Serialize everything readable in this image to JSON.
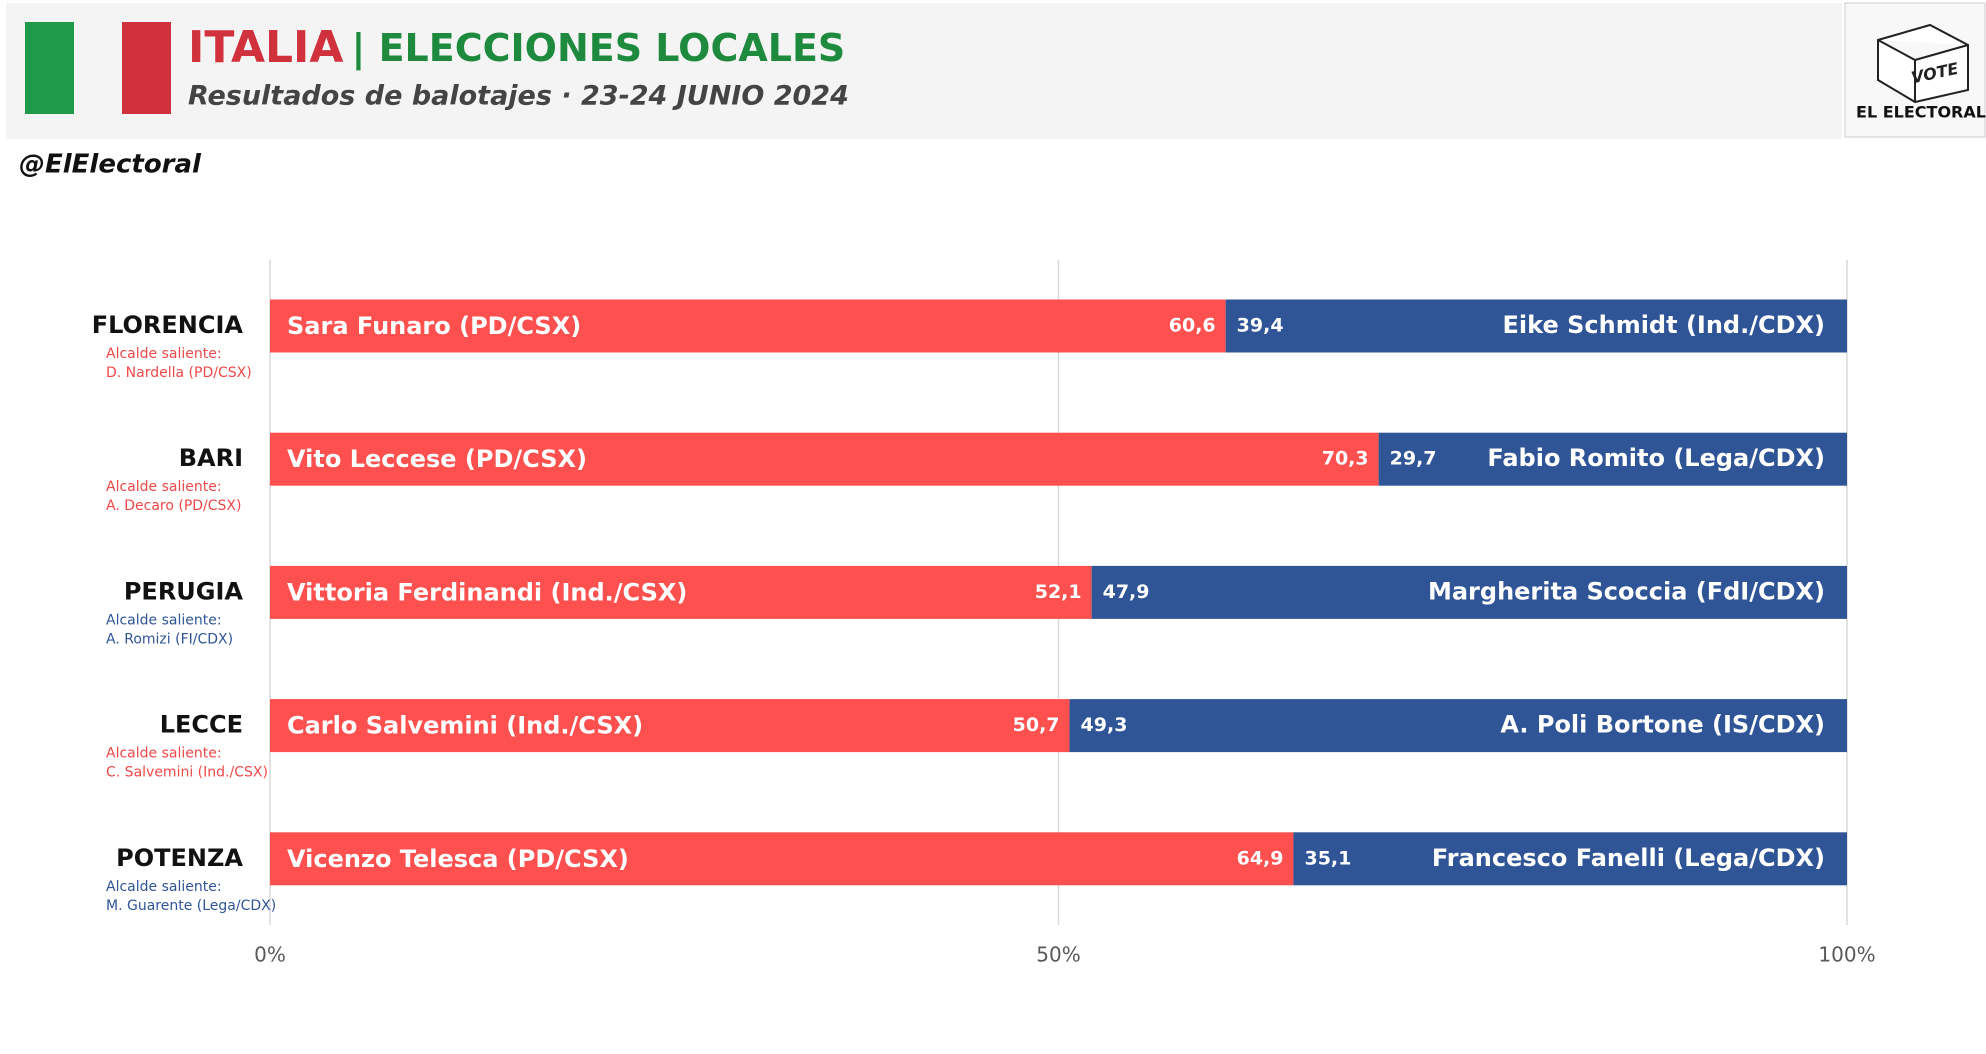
{
  "chart_data": {
    "type": "bar",
    "title": "ITALIA",
    "title_suffix": "| ELECCIONES LOCALES",
    "subtitle": "Resultados de balotajes · 23-24 JUNIO 2024",
    "handle": "@ElElectoral",
    "logo": [
      "VOTE",
      "EL ELECTORAL"
    ],
    "categories": [
      "FLORENCIA",
      "BARI",
      "PERUGIA",
      "LECCE",
      "POTENZA"
    ],
    "notes": [
      {
        "label": "Alcalde saliente:",
        "name": "D. Nardella (PD/CSX)",
        "color": "#f04848"
      },
      {
        "label": "Alcalde saliente:",
        "name": "A. Decaro (PD/CSX)",
        "color": "#f04848"
      },
      {
        "label": "Alcalde saliente:",
        "name": "A. Romizi (FI/CDX)",
        "color": "#2f5597"
      },
      {
        "label": "Alcalde saliente:",
        "name": "C. Salvemini (Ind./CSX)",
        "color": "#f04848"
      },
      {
        "label": "Alcalde saliente:",
        "name": "M. Guarente (Lega/CDX)",
        "color": "#2f5597"
      }
    ],
    "series": [
      {
        "color": "#ff5050",
        "values": [
          60.6,
          70.3,
          52.1,
          50.7,
          64.9
        ],
        "value_labels": [
          "60,6",
          "70,3",
          "52,1",
          "50,7",
          "64,9"
        ],
        "labels": [
          "Sara Funaro (PD/CSX)",
          "Vito Leccese (PD/CSX)",
          "Vittoria Ferdinandi (Ind./CSX)",
          "Carlo Salvemini (Ind./CSX)",
          "Vicenzo Telesca (PD/CSX)"
        ]
      },
      {
        "color": "#2f5597",
        "values": [
          39.4,
          29.7,
          47.9,
          49.3,
          35.1
        ],
        "value_labels": [
          "39,4",
          "29,7",
          "47,9",
          "49,3",
          "35,1"
        ],
        "labels": [
          "Eike Schmidt (Ind./CDX)",
          "Fabio Romito (Lega/CDX)",
          "Margherita Scoccia (FdI/CDX)",
          "A. Poli Bortone (IS/CDX)",
          "Francesco Fanelli (Lega/CDX)"
        ]
      }
    ],
    "xlim": [
      0,
      100
    ],
    "xticks": [
      {
        "value": 0,
        "label": "0%"
      },
      {
        "value": 50,
        "label": "50%"
      },
      {
        "value": 100,
        "label": "100%"
      }
    ],
    "grid": true
  }
}
